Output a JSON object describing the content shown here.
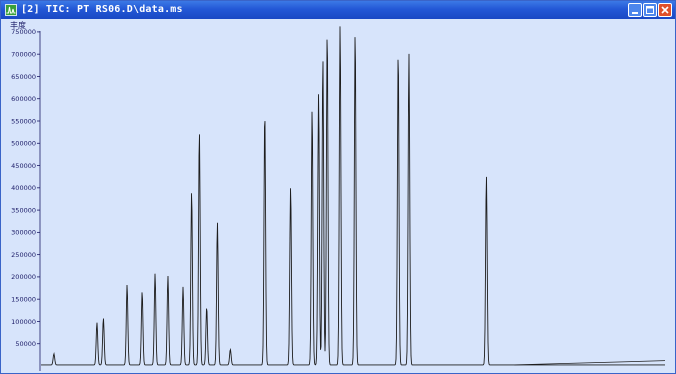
{
  "window": {
    "title": "[2] TIC: PT RS06.D\\data.ms",
    "icon": "chromatogram-icon",
    "controls": [
      "minimize-icon",
      "maximize-icon",
      "close-icon"
    ],
    "colors": {
      "titlebar": "#2358d6",
      "plot_background": "#d7e4fb",
      "trace": "#1e1e1e",
      "axis_text": "#1a1a66"
    }
  },
  "chart_data": {
    "type": "line",
    "ylabel": "丰度",
    "xlabel": "",
    "ylim": [
      0,
      770000
    ],
    "xlim": [
      0,
      14.5
    ],
    "yticks": [
      50000,
      100000,
      150000,
      200000,
      250000,
      300000,
      350000,
      400000,
      450000,
      500000,
      550000,
      600000,
      650000,
      700000,
      750000
    ],
    "ytick_labels": [
      "50000",
      "100000",
      "150000",
      "200000",
      "250000",
      "300000",
      "350000",
      "400000",
      "450000",
      "500000",
      "550000",
      "600000",
      "650000",
      "700000",
      "750000"
    ],
    "series": [
      {
        "peaks": [
          {
            "rt": 0.3,
            "height": 25000
          },
          {
            "rt": 1.3,
            "height": 95000
          },
          {
            "rt": 1.45,
            "height": 105000
          },
          {
            "rt": 2.0,
            "height": 180000
          },
          {
            "rt": 2.35,
            "height": 165000
          },
          {
            "rt": 2.65,
            "height": 205000
          },
          {
            "rt": 2.95,
            "height": 200000
          },
          {
            "rt": 3.3,
            "height": 175000
          },
          {
            "rt": 3.5,
            "height": 390000
          },
          {
            "rt": 3.68,
            "height": 525000
          },
          {
            "rt": 3.85,
            "height": 130000
          },
          {
            "rt": 4.1,
            "height": 320000
          },
          {
            "rt": 4.4,
            "height": 35000
          },
          {
            "rt": 5.2,
            "height": 570000
          },
          {
            "rt": 5.8,
            "height": 400000
          },
          {
            "rt": 6.3,
            "height": 575000
          },
          {
            "rt": 6.45,
            "height": 610000
          },
          {
            "rt": 6.55,
            "height": 690000
          },
          {
            "rt": 6.65,
            "height": 750000
          },
          {
            "rt": 6.95,
            "height": 765000
          },
          {
            "rt": 7.3,
            "height": 750000
          },
          {
            "rt": 8.3,
            "height": 705000
          },
          {
            "rt": 8.55,
            "height": 700000
          },
          {
            "rt": 10.35,
            "height": 425000
          }
        ]
      }
    ]
  }
}
